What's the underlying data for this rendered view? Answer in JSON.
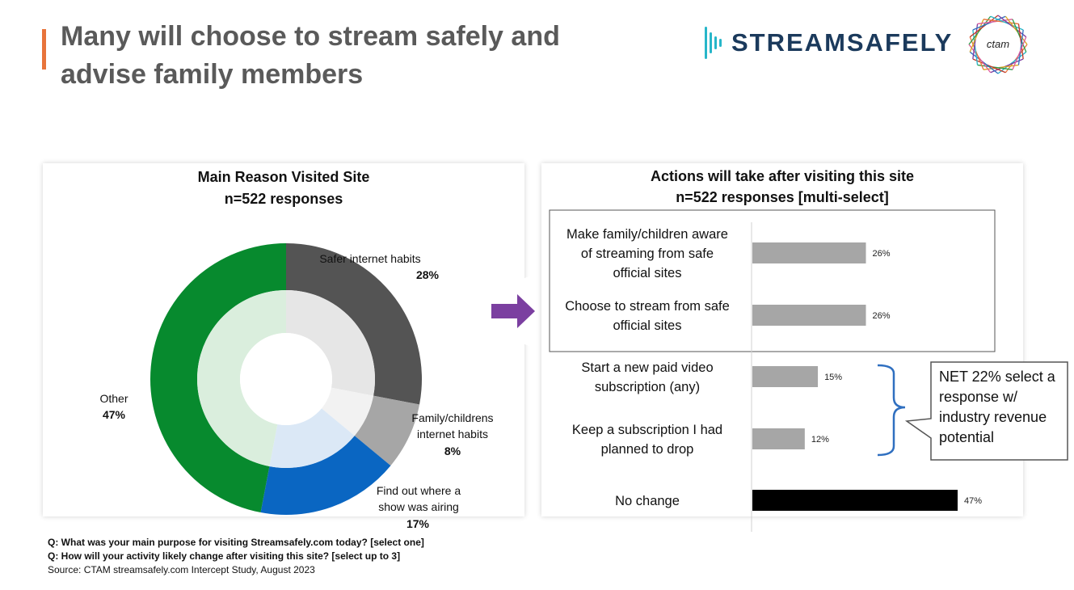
{
  "slide": {
    "title_line1": "Many will choose to stream safely and",
    "title_line2": "advise family members",
    "accent_color": "#e8743b"
  },
  "logos": {
    "streamsafely": "STREAMSAFELY",
    "ctam": "ctam"
  },
  "chart_data": [
    {
      "type": "pie",
      "title": "Main Reason Visited Site",
      "subtitle": "n=522 responses",
      "slices": [
        {
          "label": "Safer internet habits",
          "value": 28,
          "display": "28%",
          "color": "#545454",
          "inner_color": "#e6e6e6"
        },
        {
          "label": "Family/childrens internet habits",
          "value": 8,
          "display": "8%",
          "color": "#a6a6a6",
          "inner_color": "#f2f2f2"
        },
        {
          "label": "Find out where a show was airing",
          "value": 17,
          "display": "17%",
          "color": "#0a66c2",
          "inner_color": "#dbe8f6"
        },
        {
          "label": "Other",
          "value": 47,
          "display": "47%",
          "color": "#078a2e",
          "inner_color": "#daeedd"
        }
      ]
    },
    {
      "type": "bar",
      "orientation": "horizontal",
      "title": "Actions will take after visiting this site",
      "subtitle": "n=522 responses [multi-select]",
      "xlim": [
        0,
        47
      ],
      "categories": [
        {
          "lines": [
            "Make family/children aware",
            "of streaming from safe",
            "official sites"
          ],
          "value": 26,
          "display": "26%",
          "color": "#a6a6a6"
        },
        {
          "lines": [
            "Choose to stream from safe",
            "official sites"
          ],
          "value": 26,
          "display": "26%",
          "color": "#a6a6a6"
        },
        {
          "lines": [
            "Start a new paid video",
            "subscription (any)"
          ],
          "value": 15,
          "display": "15%",
          "color": "#a6a6a6"
        },
        {
          "lines": [
            "Keep a subscription I had",
            "planned to drop"
          ],
          "value": 12,
          "display": "12%",
          "color": "#a6a6a6"
        },
        {
          "lines": [
            "No change"
          ],
          "value": 47,
          "display": "47%",
          "color": "#000000"
        }
      ]
    }
  ],
  "callout": {
    "lines": [
      "NET 22% select a",
      "response w/",
      "industry revenue",
      "potential"
    ]
  },
  "arrow_color": "#7b3fa0",
  "footnotes": {
    "q1": "Q: What was your main purpose for visiting Streamsafely.com today? [select one]",
    "q2": "Q: How will your activity likely change after visiting this site? [select up to 3]",
    "source": "Source: CTAM streamsafely.com Intercept Study, August 2023"
  }
}
